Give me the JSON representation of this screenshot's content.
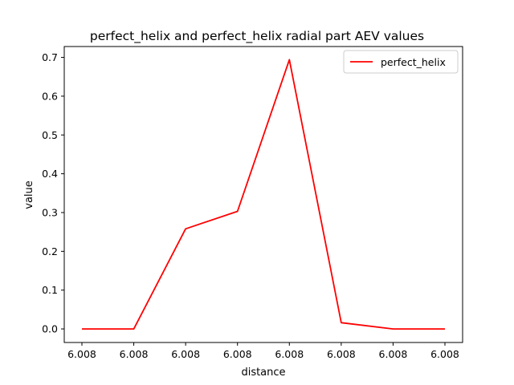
{
  "chart_data": {
    "type": "line",
    "title": "perfect_helix and perfect_helix radial part AEV values",
    "xlabel": "distance",
    "ylabel": "value",
    "x_tick_labels": [
      "6.008",
      "6.008",
      "6.008",
      "6.008",
      "6.008",
      "6.008",
      "6.008",
      "6.008"
    ],
    "y_ticks": [
      0.0,
      0.1,
      0.2,
      0.3,
      0.4,
      0.5,
      0.6,
      0.7
    ],
    "y_tick_labels": [
      "0.0",
      "0.1",
      "0.2",
      "0.3",
      "0.4",
      "0.5",
      "0.6",
      "0.7"
    ],
    "ylim": [
      -0.035,
      0.728
    ],
    "grid": false,
    "legend_position": "top-right",
    "series": [
      {
        "name": "perfect_helix",
        "color": "#ff0000",
        "values": [
          0.0,
          0.0,
          0.258,
          0.303,
          0.694,
          0.016,
          0.0,
          0.0
        ]
      }
    ]
  }
}
